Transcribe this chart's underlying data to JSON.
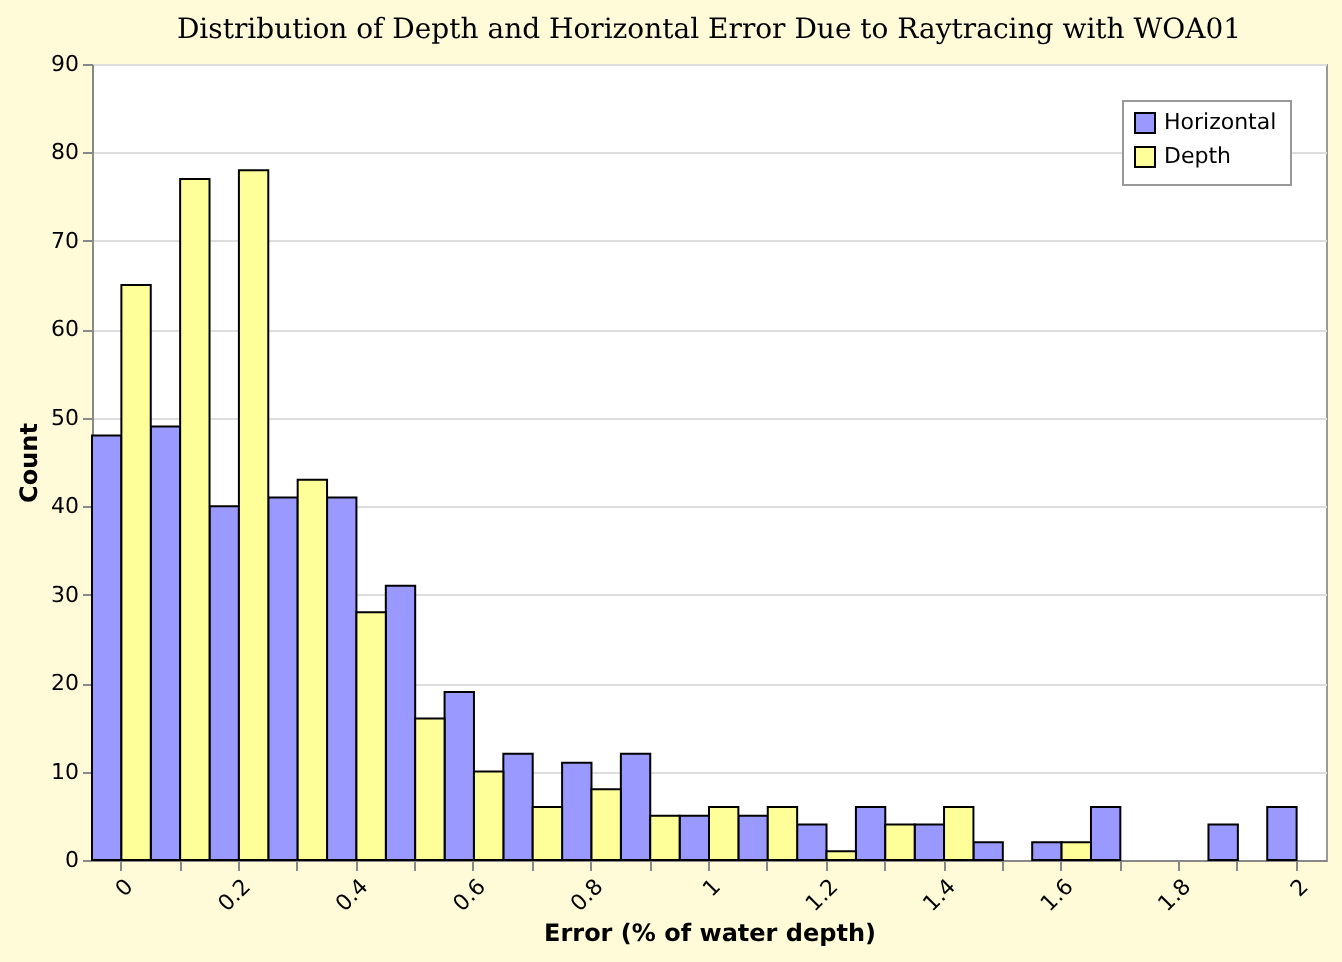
{
  "chart_data": {
    "type": "bar",
    "title": "Distribution of Depth and Horizontal Error Due to Raytracing with WOA01",
    "xlabel": "Error (% of water depth)",
    "ylabel": "Count",
    "categories": [
      "0",
      null,
      "0.2",
      null,
      "0.4",
      null,
      "0.6",
      null,
      "0.8",
      null,
      "1",
      null,
      "1.2",
      null,
      "1.4",
      null,
      "1.6",
      null,
      "1.8",
      null,
      "2"
    ],
    "series": [
      {
        "name": "Horizontal",
        "color": "#9999ff",
        "values": [
          48,
          49,
          40,
          41,
          41,
          31,
          19,
          12,
          11,
          12,
          5,
          5,
          4,
          6,
          4,
          2,
          2,
          6,
          null,
          4,
          6
        ]
      },
      {
        "name": "Depth",
        "color": "#ffff99",
        "values": [
          65,
          77,
          78,
          43,
          28,
          16,
          10,
          6,
          8,
          5,
          6,
          6,
          1,
          4,
          6,
          null,
          2,
          null,
          null,
          null,
          null
        ]
      }
    ],
    "ylim": [
      0,
      90
    ],
    "yticks": [
      0,
      10,
      20,
      30,
      40,
      50,
      60,
      70,
      80,
      90
    ],
    "grid": "y",
    "legend": "top right"
  }
}
